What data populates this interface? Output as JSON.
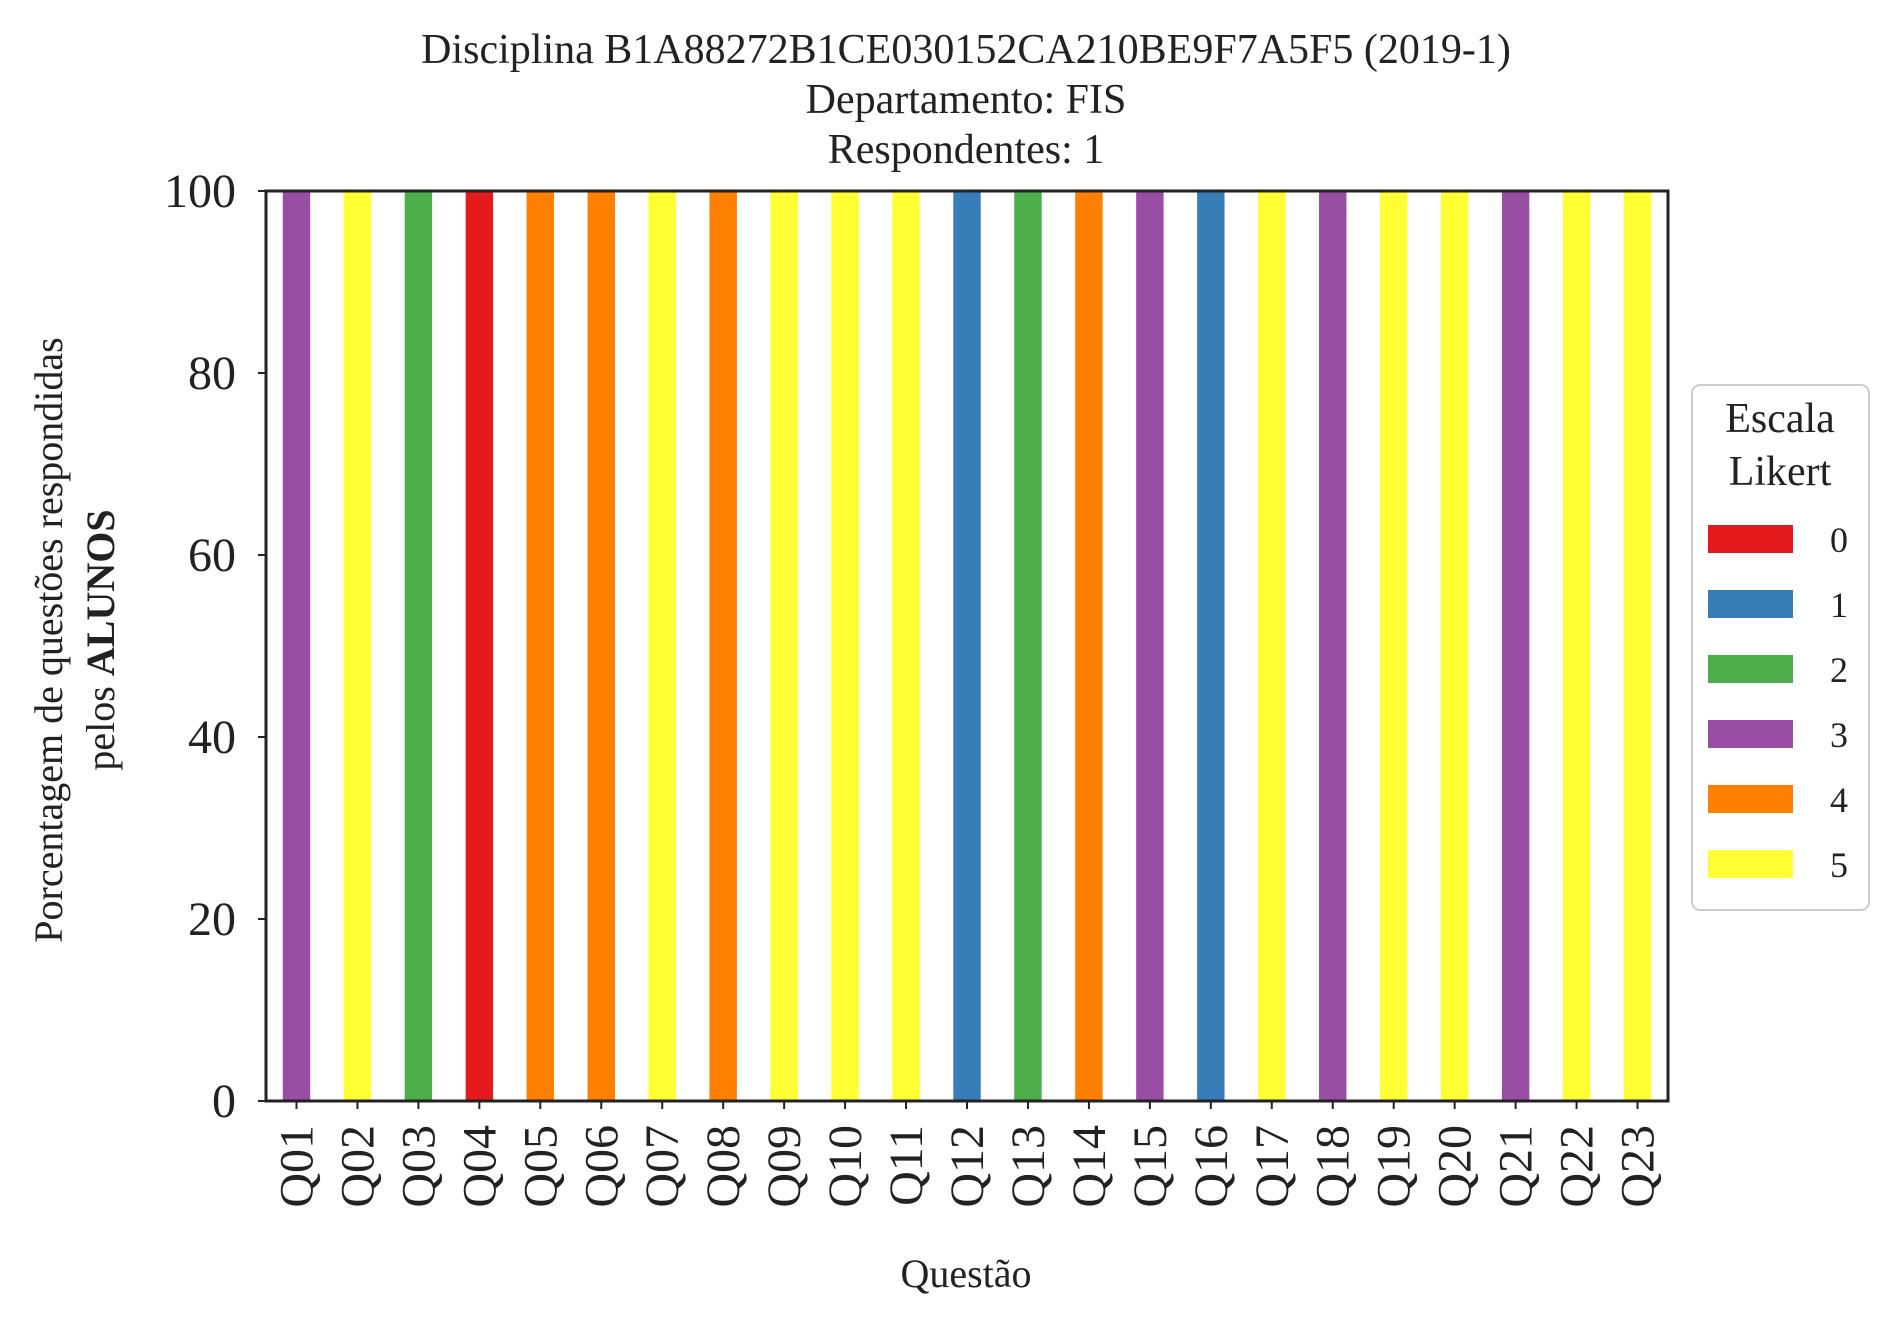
{
  "chart_data": {
    "type": "bar",
    "stacked": true,
    "title_lines": [
      "Disciplina B1A88272B1CE030152CA210BE9F7A5F5 (2019-1)",
      "Departamento: FIS",
      "Respondentes: 1"
    ],
    "xlabel": "Questão",
    "ylabel_line1": "Porcentagem de questões respondidas",
    "ylabel_line2_prefix": "pelos ",
    "ylabel_line2_bold": "ALUNOS",
    "ylim": [
      0,
      100
    ],
    "yticks": [
      0,
      20,
      40,
      60,
      80,
      100
    ],
    "grid": false,
    "legend_placement": "right-center",
    "legend_title_lines": [
      "Escala",
      "Likert"
    ],
    "categories": [
      "Q01",
      "Q02",
      "Q03",
      "Q04",
      "Q05",
      "Q06",
      "Q07",
      "Q08",
      "Q09",
      "Q10",
      "Q11",
      "Q12",
      "Q13",
      "Q14",
      "Q15",
      "Q16",
      "Q17",
      "Q18",
      "Q19",
      "Q20",
      "Q21",
      "Q22",
      "Q23"
    ],
    "series": [
      {
        "name": "0",
        "color": "#e41a1c",
        "values": [
          0,
          0,
          0,
          100,
          0,
          0,
          0,
          0,
          0,
          0,
          0,
          0,
          0,
          0,
          0,
          0,
          0,
          0,
          0,
          0,
          0,
          0,
          0
        ]
      },
      {
        "name": "1",
        "color": "#377eb8",
        "values": [
          0,
          0,
          0,
          0,
          0,
          0,
          0,
          0,
          0,
          0,
          0,
          100,
          0,
          0,
          0,
          100,
          0,
          0,
          0,
          0,
          0,
          0,
          0
        ]
      },
      {
        "name": "2",
        "color": "#4daf4a",
        "values": [
          0,
          0,
          100,
          0,
          0,
          0,
          0,
          0,
          0,
          0,
          0,
          0,
          100,
          0,
          0,
          0,
          0,
          0,
          0,
          0,
          0,
          0,
          0
        ]
      },
      {
        "name": "3",
        "color": "#984ea3",
        "values": [
          100,
          0,
          0,
          0,
          0,
          0,
          0,
          0,
          0,
          0,
          0,
          0,
          0,
          0,
          100,
          0,
          0,
          100,
          0,
          0,
          100,
          0,
          0
        ]
      },
      {
        "name": "4",
        "color": "#ff7f00",
        "values": [
          0,
          0,
          0,
          0,
          100,
          100,
          0,
          100,
          0,
          0,
          0,
          0,
          0,
          100,
          0,
          0,
          0,
          0,
          0,
          0,
          0,
          0,
          0
        ]
      },
      {
        "name": "5",
        "color": "#ffff33",
        "values": [
          0,
          100,
          0,
          0,
          0,
          0,
          100,
          0,
          100,
          100,
          100,
          0,
          0,
          0,
          0,
          0,
          100,
          0,
          100,
          100,
          0,
          100,
          100
        ]
      }
    ]
  }
}
